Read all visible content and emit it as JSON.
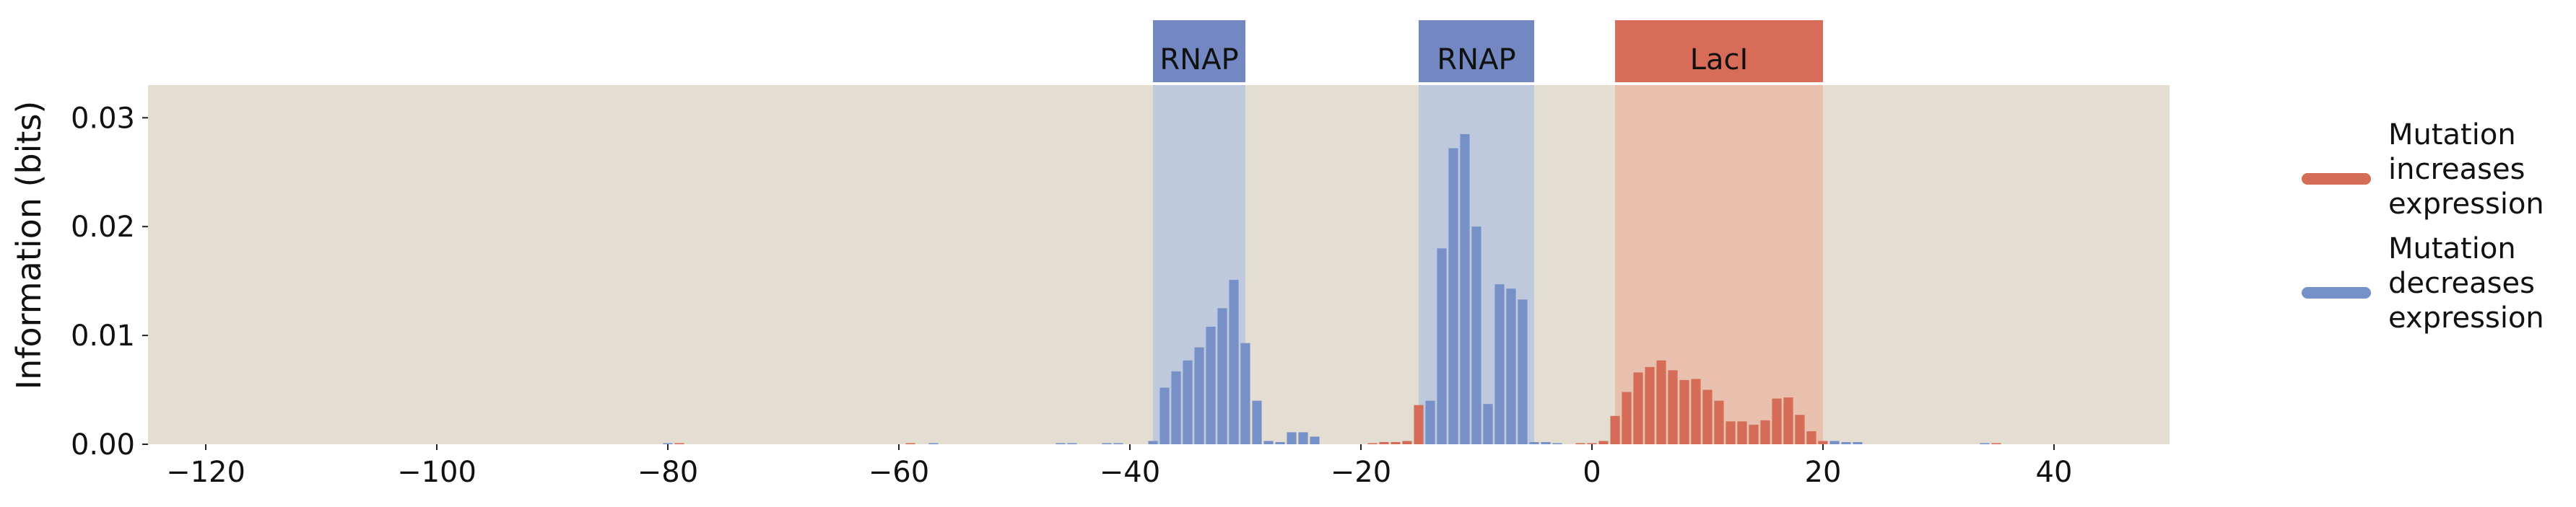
{
  "colors": {
    "background": "#e4ddd1",
    "increase": "#d46c58",
    "decrease": "#7690c8",
    "rnap_band": "#b9c6de",
    "laci_band": "#e9bba9",
    "rnap_header": "#7388c2",
    "laci_header": "#d76c58"
  },
  "chart_data": {
    "type": "bar",
    "title": "",
    "xlabel": "",
    "ylabel": "Information (bits)",
    "xlim": [
      -125,
      50
    ],
    "ylim": [
      0,
      0.033
    ],
    "grid": false,
    "legend_position": "right",
    "x_ticks": [
      -120,
      -100,
      -80,
      -60,
      -40,
      -20,
      0,
      20,
      40
    ],
    "x_tick_labels": [
      "−120",
      "−100",
      "−80",
      "−60",
      "−40",
      "−20",
      "0",
      "20",
      "40"
    ],
    "y_ticks": [
      0,
      0.01,
      0.02,
      0.03
    ],
    "y_tick_labels": [
      "0.00",
      "0.01",
      "0.02",
      "0.03"
    ],
    "regions": [
      {
        "label": "RNAP",
        "start": -38,
        "end": -30,
        "kind": "rnap"
      },
      {
        "label": "RNAP",
        "start": -15,
        "end": -5,
        "kind": "rnap"
      },
      {
        "label": "LacI",
        "start": 2,
        "end": 20,
        "kind": "laci"
      }
    ],
    "legend": [
      {
        "label_lines": [
          "Mutation",
          "increases",
          "expression"
        ],
        "color_key": "increase"
      },
      {
        "label_lines": [
          "Mutation",
          "decreases",
          "expression"
        ],
        "color_key": "decrease"
      }
    ],
    "series": [
      {
        "color_key": "decrease",
        "points": [
          {
            "x": -80,
            "y": 0.0001
          },
          {
            "x": -57,
            "y": 0.0001
          },
          {
            "x": -46,
            "y": 0.0001
          },
          {
            "x": -45,
            "y": 0.0001
          },
          {
            "x": -42,
            "y": 0.0001
          },
          {
            "x": -41,
            "y": 0.0001
          },
          {
            "x": -38,
            "y": 0.0003
          },
          {
            "x": -37,
            "y": 0.0052
          },
          {
            "x": -36,
            "y": 0.0067
          },
          {
            "x": -35,
            "y": 0.0077
          },
          {
            "x": -34,
            "y": 0.0089
          },
          {
            "x": -33,
            "y": 0.0108
          },
          {
            "x": -32,
            "y": 0.0125
          },
          {
            "x": -31,
            "y": 0.0151
          },
          {
            "x": -30,
            "y": 0.0093
          },
          {
            "x": -29,
            "y": 0.004
          },
          {
            "x": -28,
            "y": 0.0003
          },
          {
            "x": -27,
            "y": 0.0002
          },
          {
            "x": -26,
            "y": 0.0011
          },
          {
            "x": -25,
            "y": 0.0011
          },
          {
            "x": -24,
            "y": 0.0007
          },
          {
            "x": -14,
            "y": 0.004
          },
          {
            "x": -13,
            "y": 0.018
          },
          {
            "x": -12,
            "y": 0.0272
          },
          {
            "x": -11,
            "y": 0.0285
          },
          {
            "x": -10,
            "y": 0.02
          },
          {
            "x": -9,
            "y": 0.0037
          },
          {
            "x": -8,
            "y": 0.0147
          },
          {
            "x": -7,
            "y": 0.0143
          },
          {
            "x": -6,
            "y": 0.0133
          },
          {
            "x": -5,
            "y": 0.0002
          },
          {
            "x": -4,
            "y": 0.0002
          },
          {
            "x": -3,
            "y": 0.0001
          },
          {
            "x": 21,
            "y": 0.0003
          },
          {
            "x": 22,
            "y": 0.0002
          },
          {
            "x": 23,
            "y": 0.0002
          },
          {
            "x": 34,
            "y": 0.0001
          }
        ]
      },
      {
        "color_key": "increase",
        "points": [
          {
            "x": -79,
            "y": 0.0001
          },
          {
            "x": -59,
            "y": 0.0001
          },
          {
            "x": -19,
            "y": 0.0001
          },
          {
            "x": -18,
            "y": 0.0002
          },
          {
            "x": -17,
            "y": 0.0002
          },
          {
            "x": -16,
            "y": 0.0003
          },
          {
            "x": -15,
            "y": 0.0036
          },
          {
            "x": -1,
            "y": 0.0001
          },
          {
            "x": 0,
            "y": 0.0001
          },
          {
            "x": 1,
            "y": 0.0003
          },
          {
            "x": 2,
            "y": 0.0026
          },
          {
            "x": 3,
            "y": 0.0048
          },
          {
            "x": 4,
            "y": 0.0066
          },
          {
            "x": 5,
            "y": 0.0071
          },
          {
            "x": 6,
            "y": 0.0077
          },
          {
            "x": 7,
            "y": 0.0068
          },
          {
            "x": 8,
            "y": 0.0059
          },
          {
            "x": 9,
            "y": 0.006
          },
          {
            "x": 10,
            "y": 0.005
          },
          {
            "x": 11,
            "y": 0.004
          },
          {
            "x": 12,
            "y": 0.0021
          },
          {
            "x": 13,
            "y": 0.0021
          },
          {
            "x": 14,
            "y": 0.0018
          },
          {
            "x": 15,
            "y": 0.0022
          },
          {
            "x": 16,
            "y": 0.0042
          },
          {
            "x": 17,
            "y": 0.0043
          },
          {
            "x": 18,
            "y": 0.0027
          },
          {
            "x": 19,
            "y": 0.0012
          },
          {
            "x": 20,
            "y": 0.0003
          },
          {
            "x": 35,
            "y": 0.0001
          }
        ]
      }
    ]
  }
}
